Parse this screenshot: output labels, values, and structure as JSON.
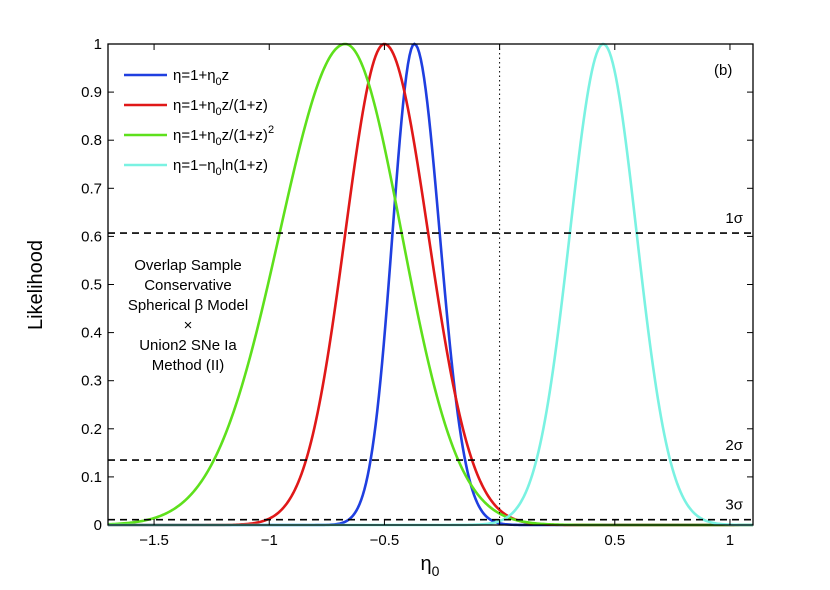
{
  "chart_data": {
    "type": "line",
    "title": "",
    "panel_label": "(b)",
    "xlabel": {
      "base": "η",
      "sub": "0"
    },
    "ylabel": "Likelihood",
    "xlim": [
      -1.7,
      1.1
    ],
    "ylim": [
      0,
      1
    ],
    "xticks": [
      -1.5,
      -1,
      -0.5,
      0,
      0.5,
      1
    ],
    "xtick_labels": [
      "−1.5",
      "−1",
      "−0.5",
      "0",
      "0.5",
      "1"
    ],
    "yticks": [
      0,
      0.1,
      0.2,
      0.3,
      0.4,
      0.5,
      0.6,
      0.7,
      0.8,
      0.9,
      1
    ],
    "ytick_labels": [
      "0",
      "0.1",
      "0.2",
      "0.3",
      "0.4",
      "0.5",
      "0.6",
      "0.7",
      "0.8",
      "0.9",
      "1"
    ],
    "grid": false,
    "legend_position": "top-left",
    "series": [
      {
        "name": "η=1+η0z",
        "legend": [
          {
            "t": "η=1+η"
          },
          {
            "t": "0",
            "sub": true
          },
          {
            "t": "z"
          }
        ],
        "color": "#1f3fe0",
        "peak": -0.37,
        "sigma_left": 0.095,
        "sigma_right": 0.11
      },
      {
        "name": "η=1+η0z/(1+z)",
        "legend": [
          {
            "t": "η=1+η"
          },
          {
            "t": "0",
            "sub": true
          },
          {
            "t": "z/(1+z)"
          }
        ],
        "color": "#e01818",
        "peak": -0.5,
        "sigma_left": 0.17,
        "sigma_right": 0.19
      },
      {
        "name": "η=1+η0z/(1+z)^2",
        "legend": [
          {
            "t": "η=1+η"
          },
          {
            "t": "0",
            "sub": true
          },
          {
            "t": "z/(1+z)"
          },
          {
            "t": "2",
            "sup": true
          }
        ],
        "color": "#5ee01c",
        "peak": -0.67,
        "sigma_left": 0.285,
        "sigma_right": 0.245
      },
      {
        "name": "η=1−η0ln(1+z)",
        "legend": [
          {
            "t": "η=1−η"
          },
          {
            "t": "0",
            "sub": true
          },
          {
            "t": "ln(1+z)"
          }
        ],
        "color": "#7af2e2",
        "peak": 0.45,
        "sigma_left": 0.145,
        "sigma_right": 0.145
      }
    ],
    "reference_lines": [
      {
        "y": 0.607,
        "label": "1σ"
      },
      {
        "y": 0.135,
        "label": "2σ"
      },
      {
        "y": 0.011,
        "label": "3σ"
      }
    ],
    "vertical_line": {
      "x": 0
    },
    "annotation_lines": [
      "Overlap Sample",
      "Conservative",
      "Spherical β Model",
      "×",
      "Union2 SNe Ia",
      "Method (II)"
    ]
  }
}
